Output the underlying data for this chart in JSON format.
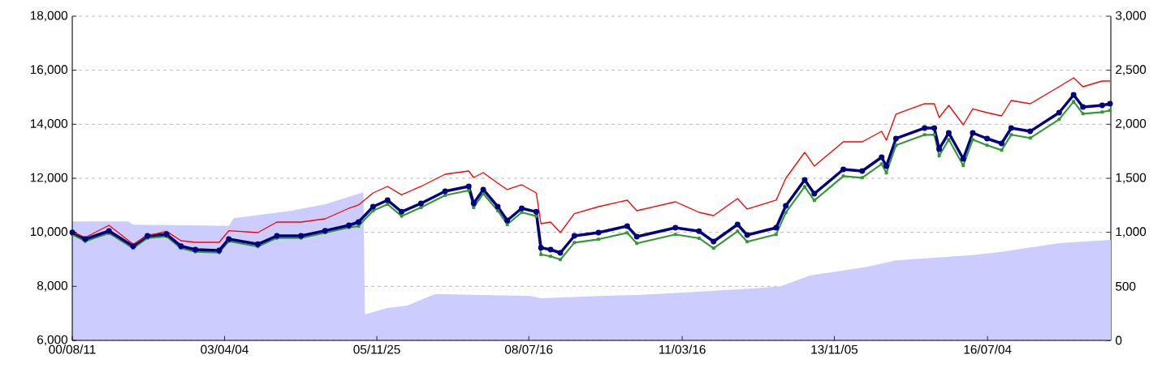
{
  "chart_data": {
    "type": "line",
    "x": [
      "2000-08-11",
      "2000-11-01",
      "2001-04-01",
      "2001-09-01",
      "2001-12-01",
      "2002-04-01",
      "2002-07-01",
      "2002-10-01",
      "2003-03-01",
      "2003-05-01",
      "2003-11-01",
      "2004-03-01",
      "2004-08-01",
      "2005-01-01",
      "2005-06-01",
      "2005-08-01",
      "2005-11-01",
      "2006-02-01",
      "2006-05-01",
      "2006-09-01",
      "2007-02-01",
      "2007-07-01",
      "2007-08-01",
      "2007-10-01",
      "2008-01-01",
      "2008-03-01",
      "2008-06-01",
      "2008-09-01",
      "2008-10-01",
      "2008-12-01",
      "2009-02-01",
      "2009-05-01",
      "2009-10-01",
      "2010-04-01",
      "2010-06-01",
      "2011-02-01",
      "2011-07-01",
      "2011-10-01",
      "2012-03-01",
      "2012-05-01",
      "2012-11-01",
      "2013-01-01",
      "2013-05-01",
      "2013-07-01",
      "2014-01-01",
      "2014-05-01",
      "2014-09-01",
      "2014-10-01",
      "2014-12-01",
      "2015-06-01",
      "2015-08-01",
      "2015-09-01",
      "2015-11-01",
      "2016-02-01",
      "2016-04-01",
      "2016-07-01",
      "2016-10-01",
      "2016-12-01",
      "2017-04-01",
      "2017-10-01",
      "2018-01-01",
      "2018-03-01",
      "2018-07-01",
      "2018-08-20"
    ],
    "series": [
      {
        "type": "area",
        "axis": "y2",
        "color": "#ccccff",
        "marker": "none",
        "x": [
          "2000-08-11",
          "2001-08-01",
          "2001-09-01",
          "2003-05-01",
          "2003-06-01",
          "2004-06-01",
          "2005-01-01",
          "2005-09-01",
          "2005-09-10",
          "2006-02-01",
          "2006-06-01",
          "2006-12-01",
          "2008-08-01",
          "2008-10-01",
          "2009-10-01",
          "2010-06-01",
          "2011-03-01",
          "2012-06-01",
          "2012-12-01",
          "2013-06-01",
          "2014-06-01",
          "2014-12-01",
          "2016-04-01",
          "2016-10-01",
          "2017-10-01",
          "2018-08-25"
        ],
        "values": [
          1100,
          1100,
          1070,
          1060,
          1130,
          1200,
          1260,
          1370,
          240,
          300,
          320,
          430,
          410,
          390,
          410,
          420,
          440,
          480,
          500,
          600,
          680,
          740,
          790,
          820,
          900,
          930
        ]
      },
      {
        "color": "#339933",
        "marker": "square",
        "values": [
          9920,
          9670,
          9970,
          9410,
          9790,
          9850,
          9410,
          9280,
          9250,
          9670,
          9470,
          9790,
          9790,
          9980,
          10180,
          10230,
          10800,
          11040,
          10600,
          10920,
          11370,
          11550,
          10920,
          11430,
          10800,
          10290,
          10740,
          10600,
          9180,
          9110,
          8990,
          9620,
          9740,
          9980,
          9590,
          9920,
          9780,
          9410,
          10040,
          9650,
          9920,
          10730,
          11690,
          11180,
          12080,
          12020,
          12530,
          12200,
          13220,
          13610,
          13610,
          12830,
          13430,
          12470,
          13430,
          13220,
          13040,
          13610,
          13490,
          14180,
          14840,
          14390,
          14450,
          14510
        ]
      },
      {
        "color": "#000080",
        "marker": "circle",
        "values": [
          10000,
          9750,
          10050,
          9490,
          9870,
          9930,
          9490,
          9360,
          9330,
          9750,
          9560,
          9870,
          9870,
          10060,
          10260,
          10380,
          10950,
          11190,
          10760,
          11070,
          11520,
          11700,
          11070,
          11580,
          10950,
          10440,
          10890,
          10760,
          9430,
          9360,
          9240,
          9870,
          9990,
          10230,
          9840,
          10170,
          10040,
          9660,
          10290,
          9900,
          10170,
          10980,
          11940,
          11430,
          12330,
          12270,
          12780,
          12450,
          13470,
          13860,
          13860,
          13080,
          13680,
          12720,
          13680,
          13470,
          13290,
          13860,
          13740,
          14430,
          15090,
          14640,
          14700,
          14760
        ]
      },
      {
        "color": "#ff0000",
        "marker": "none",
        "values": [
          10000,
          9810,
          10260,
          9560,
          9870,
          10040,
          9690,
          9630,
          9630,
          10060,
          9990,
          10380,
          10380,
          10500,
          10890,
          11010,
          11460,
          11700,
          11390,
          11700,
          12150,
          12270,
          12030,
          12210,
          11820,
          11580,
          11760,
          11460,
          10320,
          10380,
          9990,
          10690,
          10950,
          11190,
          10800,
          11130,
          10740,
          10620,
          11250,
          10860,
          11190,
          12000,
          12960,
          12450,
          13350,
          13350,
          13740,
          13410,
          14370,
          14760,
          14760,
          14250,
          14700,
          13980,
          14570,
          14430,
          14310,
          14880,
          14760,
          15390,
          15720,
          15390,
          15600,
          15600
        ]
      }
    ],
    "xlim": [
      "2000-08-11",
      "2018-08-25"
    ],
    "xticks": [
      {
        "value": "2000-08-11",
        "label": "00/08/11"
      },
      {
        "value": "2003-04-04",
        "label": "03/04/04"
      },
      {
        "value": "2005-11-25",
        "label": "05/11/25"
      },
      {
        "value": "2008-07-16",
        "label": "08/07/16"
      },
      {
        "value": "2011-03-16",
        "label": "11/03/16"
      },
      {
        "value": "2013-11-05",
        "label": "13/11/05"
      },
      {
        "value": "2016-07-04",
        "label": "16/07/04"
      }
    ],
    "ylim": [
      6000,
      18000
    ],
    "yticks": [
      {
        "value": 6000,
        "label": "6,000"
      },
      {
        "value": 8000,
        "label": "8,000"
      },
      {
        "value": 10000,
        "label": "10,000"
      },
      {
        "value": 12000,
        "label": "12,000"
      },
      {
        "value": 14000,
        "label": "14,000"
      },
      {
        "value": 16000,
        "label": "16,000"
      },
      {
        "value": 18000,
        "label": "18,000"
      }
    ],
    "y2lim": [
      0,
      3000
    ],
    "y2ticks": [
      0,
      500,
      {
        "value": 1000,
        "label": "1,000"
      },
      {
        "value": 1500,
        "label": "1,500"
      },
      {
        "value": 2000,
        "label": "2,000"
      },
      {
        "value": 2500,
        "label": "2,500"
      },
      {
        "value": 3000,
        "label": "3,000"
      }
    ],
    "grid": "y"
  }
}
